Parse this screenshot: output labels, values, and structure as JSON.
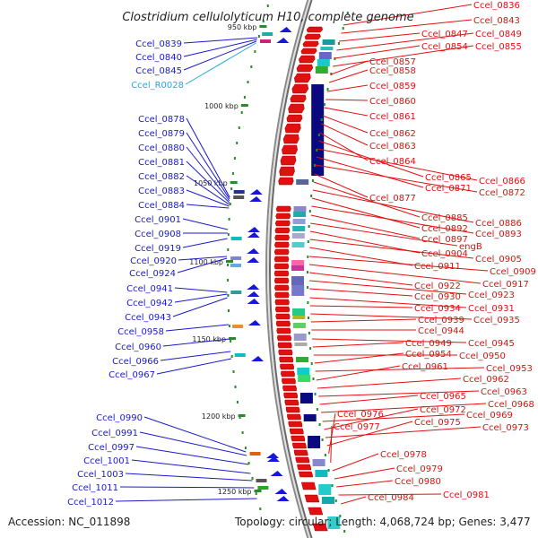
{
  "map": {
    "title": "Clostridium cellulolyticum H10, complete genome",
    "accession": "Accession: NC_011898",
    "summary": "Topology: circular; Length: 4,068,724 bp; Genes: 3,477",
    "colors": {
      "left_label": "#1a1acc",
      "left_label_rna": "#22aadd",
      "right_label": "#e01010",
      "cds_arrow": "#e01010",
      "tick": "#2a8a2a",
      "tick_text": "#222222"
    }
  },
  "kbp_marks": [
    "950 kbp",
    "1000 kbp",
    "1050 kbp",
    "1100 kbp",
    "1150 kbp",
    "1200 kbp",
    "1250 kbp"
  ],
  "left_labels": [
    {
      "text": "Ccel_0839",
      "rna": false
    },
    {
      "text": "Ccel_0840",
      "rna": false
    },
    {
      "text": "Ccel_0845",
      "rna": false
    },
    {
      "text": "Ccel_R0028",
      "rna": true
    },
    {
      "text": "Ccel_0878",
      "rna": false
    },
    {
      "text": "Ccel_0879",
      "rna": false
    },
    {
      "text": "Ccel_0880",
      "rna": false
    },
    {
      "text": "Ccel_0881",
      "rna": false
    },
    {
      "text": "Ccel_0882",
      "rna": false
    },
    {
      "text": "Ccel_0883",
      "rna": false
    },
    {
      "text": "Ccel_0884",
      "rna": false
    },
    {
      "text": "Ccel_0901",
      "rna": false
    },
    {
      "text": "Ccel_0908",
      "rna": false
    },
    {
      "text": "Ccel_0919",
      "rna": false
    },
    {
      "text": "Ccel_0920",
      "rna": false
    },
    {
      "text": "Ccel_0924",
      "rna": false
    },
    {
      "text": "Ccel_0941",
      "rna": false
    },
    {
      "text": "Ccel_0942",
      "rna": false
    },
    {
      "text": "Ccel_0943",
      "rna": false
    },
    {
      "text": "Ccel_0958",
      "rna": false
    },
    {
      "text": "Ccel_0960",
      "rna": false
    },
    {
      "text": "Ccel_0966",
      "rna": false
    },
    {
      "text": "Ccel_0967",
      "rna": false
    },
    {
      "text": "Ccel_0990",
      "rna": false
    },
    {
      "text": "Ccel_0991",
      "rna": false
    },
    {
      "text": "Ccel_0997",
      "rna": false
    },
    {
      "text": "Ccel_1001",
      "rna": false
    },
    {
      "text": "Ccel_1003",
      "rna": false
    },
    {
      "text": "Ccel_1011",
      "rna": false
    },
    {
      "text": "Ccel_1012",
      "rna": false
    }
  ],
  "right_labels": [
    "Ccel_0836",
    "Ccel_0843",
    "Ccel_0847",
    "Ccel_0849",
    "Ccel_0854",
    "Ccel_0855",
    "Ccel_0857",
    "Ccel_0858",
    "Ccel_0859",
    "Ccel_0860",
    "Ccel_0861",
    "Ccel_0862",
    "Ccel_0863",
    "Ccel_0864",
    "Ccel_0865",
    "Ccel_0866",
    "Ccel_0871",
    "Ccel_0872",
    "Ccel_0877",
    "Ccel_0885",
    "Ccel_0886",
    "Ccel_0892",
    "Ccel_0893",
    "Ccel_0897",
    "engB",
    "Ccel_0904",
    "Ccel_0905",
    "Ccel_0911",
    "Ccel_0909",
    "Ccel_0917",
    "Ccel_0922",
    "Ccel_0923",
    "Ccel_0930",
    "Ccel_0931",
    "Ccel_0934",
    "Ccel_0935",
    "Ccel_0939",
    "Ccel_0944",
    "Ccel_0945",
    "Ccel_0949",
    "Ccel_0950",
    "Ccel_0954",
    "Ccel_0953",
    "Ccel_0961",
    "Ccel_0962",
    "Ccel_0963",
    "Ccel_0965",
    "Ccel_0968",
    "Ccel_0969",
    "Ccel_0972",
    "Ccel_0973",
    "Ccel_0975",
    "Ccel_0976",
    "Ccel_0977",
    "Ccel_0978",
    "Ccel_0979",
    "Ccel_0980",
    "Ccel_0981",
    "Ccel_0984"
  ]
}
